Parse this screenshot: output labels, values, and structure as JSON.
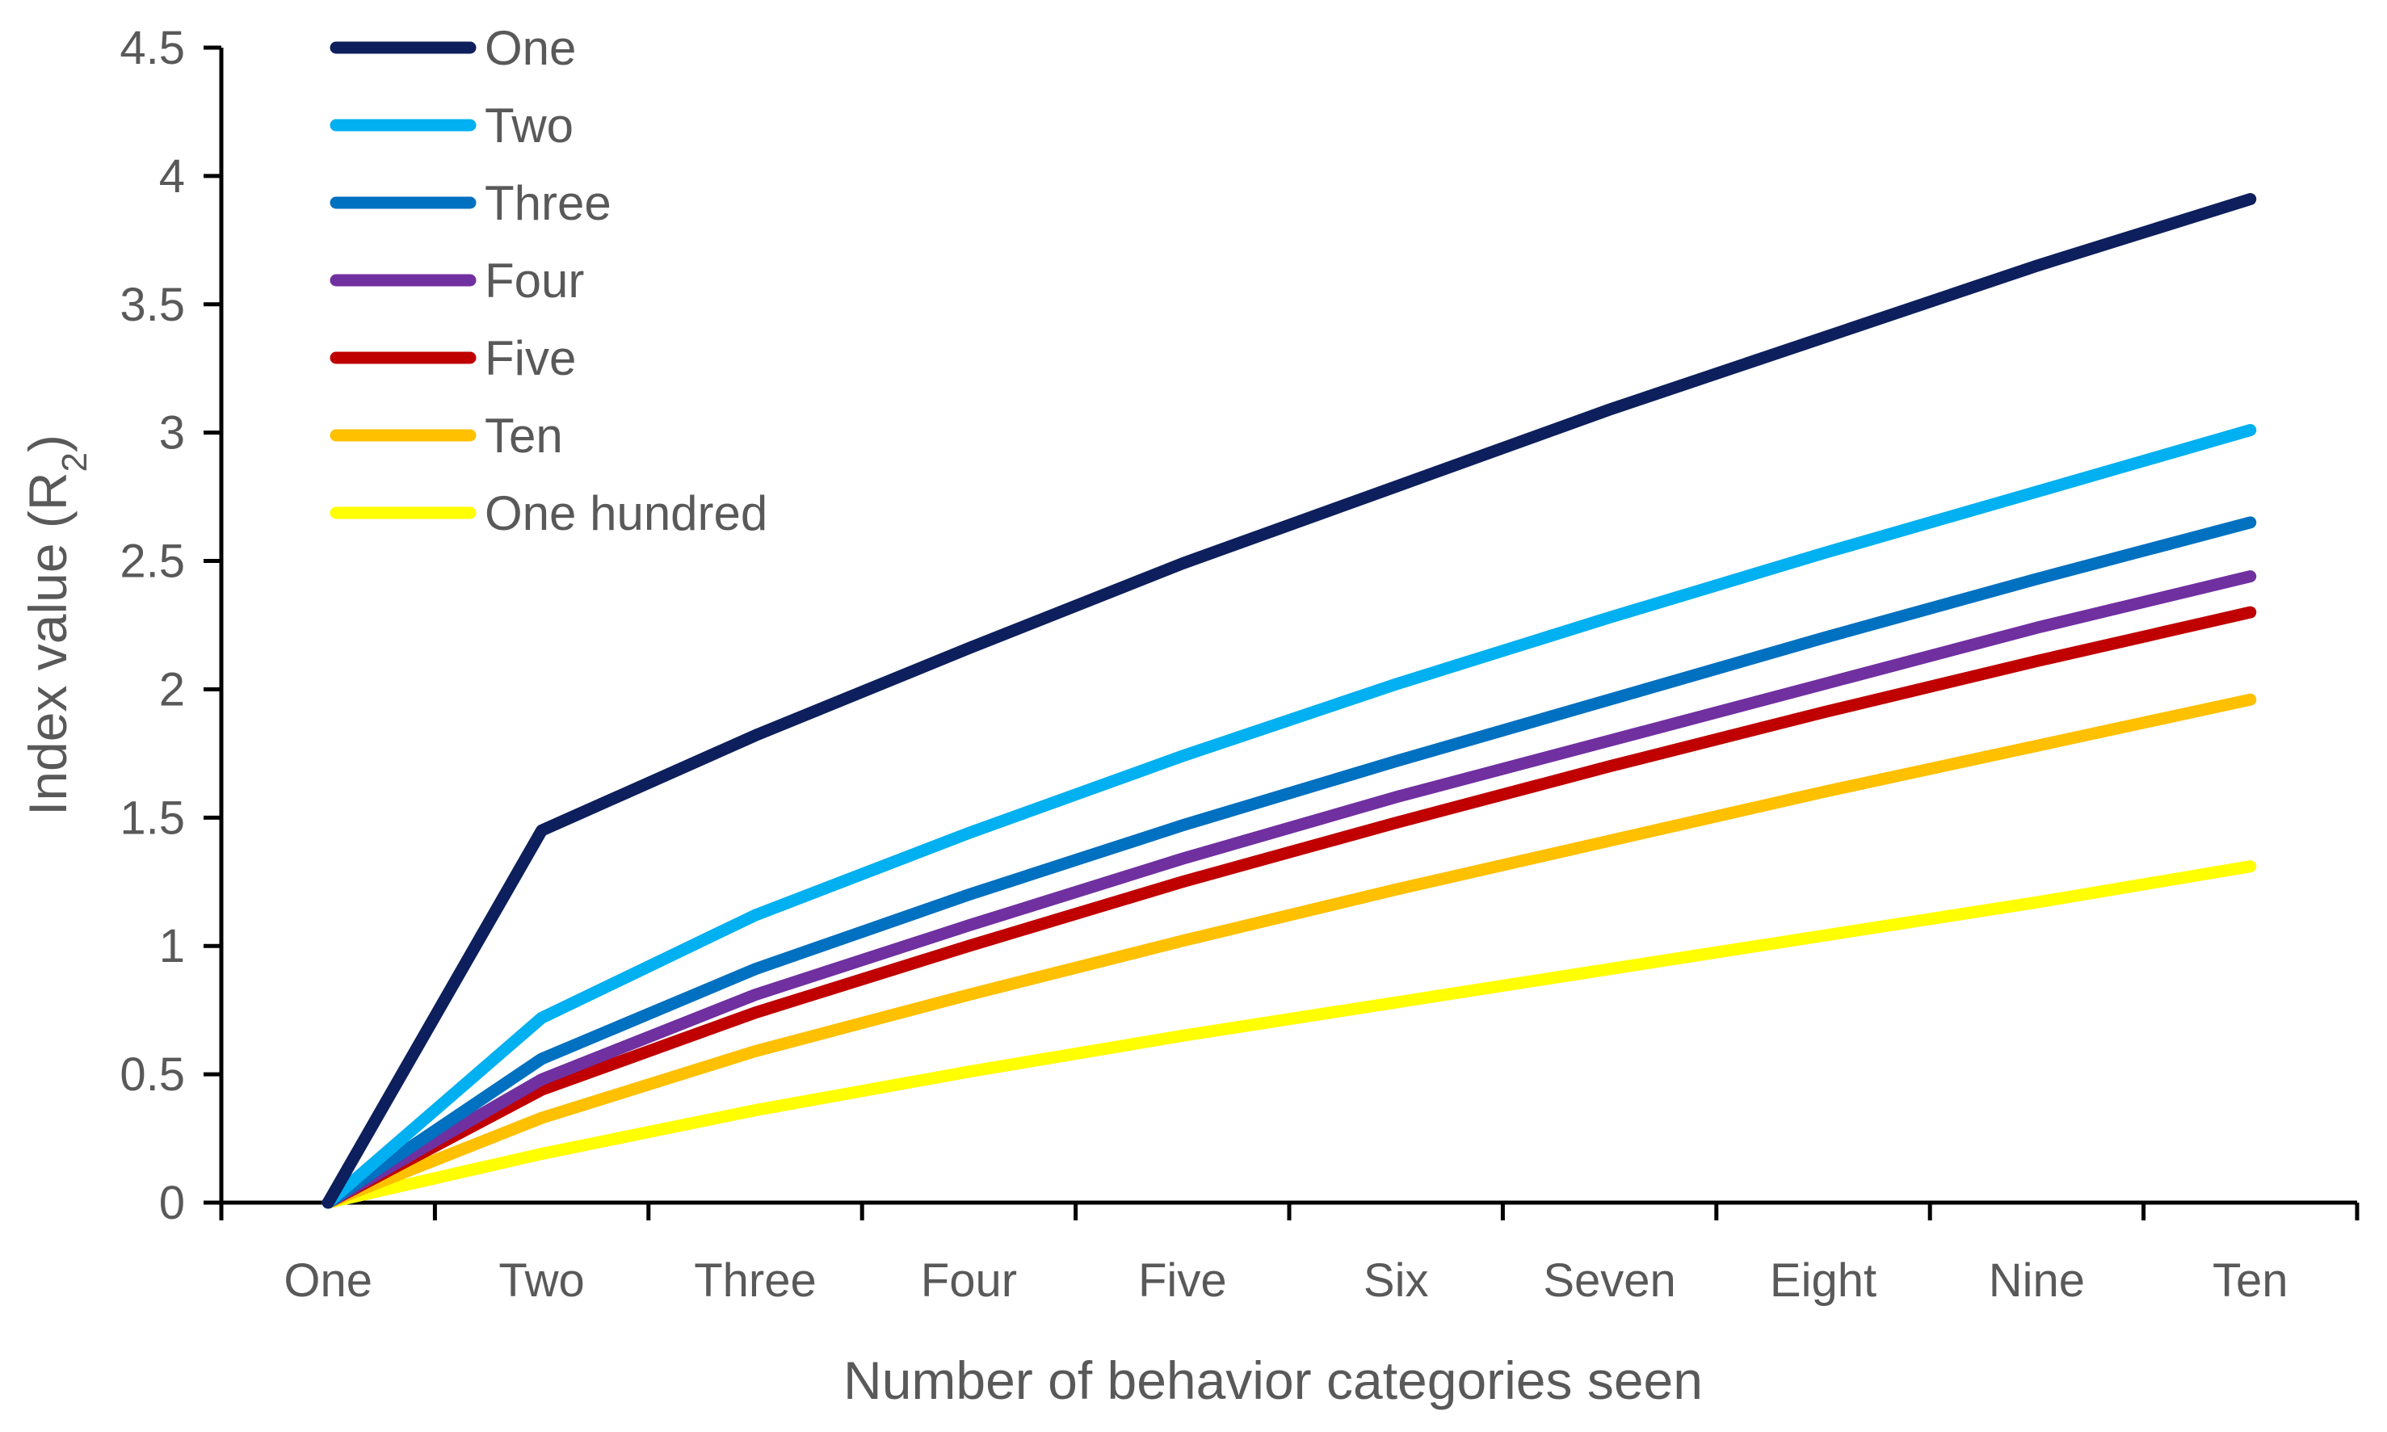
{
  "chart_data": {
    "type": "line",
    "title": "",
    "xlabel": "Number of behavior categories seen",
    "ylabel": "Index value (R",
    "ylabel_subscript": "2",
    "ylabel_suffix": ")",
    "categories": [
      "One",
      "Two",
      "Three",
      "Four",
      "Five",
      "Six",
      "Seven",
      "Eight",
      "Nine",
      "Ten"
    ],
    "ylim": [
      0,
      4.5
    ],
    "yticks": [
      "0",
      "0.5",
      "1",
      "1.5",
      "2",
      "2.5",
      "3",
      "3.5",
      "4",
      "4.5"
    ],
    "ytick_values": [
      0,
      0.5,
      1,
      1.5,
      2,
      2.5,
      3,
      3.5,
      4,
      4.5
    ],
    "grid": false,
    "legend_position": "top-left",
    "series": [
      {
        "name": "One",
        "color": "#0d1f5c",
        "values": [
          0,
          1.45,
          1.82,
          2.16,
          2.49,
          2.79,
          3.09,
          3.37,
          3.65,
          3.91
        ]
      },
      {
        "name": "Two",
        "color": "#00b0f0",
        "values": [
          0,
          0.72,
          1.12,
          1.44,
          1.74,
          2.02,
          2.28,
          2.53,
          2.77,
          3.01
        ]
      },
      {
        "name": "Three",
        "color": "#0070c0",
        "values": [
          0,
          0.56,
          0.91,
          1.2,
          1.47,
          1.72,
          1.96,
          2.2,
          2.43,
          2.65
        ]
      },
      {
        "name": "Four",
        "color": "#7030a0",
        "values": [
          0,
          0.48,
          0.81,
          1.08,
          1.34,
          1.58,
          1.8,
          2.02,
          2.24,
          2.44
        ]
      },
      {
        "name": "Five",
        "color": "#c00000",
        "values": [
          0,
          0.44,
          0.74,
          1.0,
          1.25,
          1.48,
          1.7,
          1.91,
          2.11,
          2.3
        ]
      },
      {
        "name": "Ten",
        "color": "#ffc000",
        "values": [
          0,
          0.33,
          0.59,
          0.81,
          1.02,
          1.22,
          1.41,
          1.6,
          1.78,
          1.96
        ]
      },
      {
        "name": "One hundred",
        "color": "#ffff00",
        "values": [
          0,
          0.19,
          0.36,
          0.51,
          0.65,
          0.78,
          0.91,
          1.04,
          1.17,
          1.31
        ]
      }
    ]
  }
}
